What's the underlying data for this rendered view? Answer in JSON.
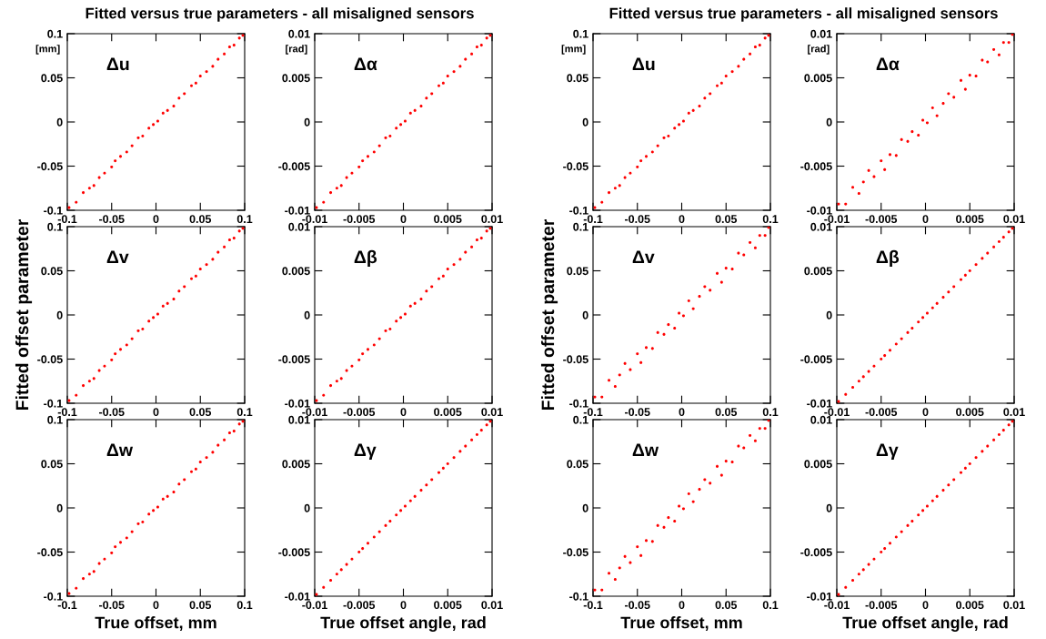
{
  "chart_data": [
    {
      "type": "scatter",
      "title": "Fitted versus true parameters - all misaligned sensors",
      "annotations": [
        "Δu",
        "[mm]"
      ],
      "color": "#ff0000",
      "marker": "circle",
      "xlim": [
        -0.1,
        0.1
      ],
      "ylim": [
        -0.1,
        0.1
      ],
      "xticks": [
        -0.1,
        -0.05,
        0,
        0.05,
        0.1
      ],
      "yticks": [
        -0.1,
        -0.05,
        0,
        0.05,
        0.1
      ],
      "x": [
        -0.098,
        -0.09,
        -0.082,
        -0.075,
        -0.07,
        -0.064,
        -0.058,
        -0.05,
        -0.046,
        -0.04,
        -0.033,
        -0.027,
        -0.02,
        -0.015,
        -0.008,
        -0.003,
        0.002,
        0.008,
        0.013,
        0.02,
        0.026,
        0.032,
        0.04,
        0.045,
        0.05,
        0.057,
        0.064,
        0.07,
        0.077,
        0.083,
        0.088,
        0.094,
        0.098
      ],
      "values": [
        -0.097,
        -0.091,
        -0.08,
        -0.075,
        -0.072,
        -0.063,
        -0.058,
        -0.051,
        -0.044,
        -0.039,
        -0.034,
        -0.027,
        -0.018,
        -0.016,
        -0.007,
        -0.003,
        0.001,
        0.01,
        0.013,
        0.018,
        0.027,
        0.032,
        0.041,
        0.044,
        0.052,
        0.057,
        0.063,
        0.071,
        0.077,
        0.085,
        0.087,
        0.095,
        0.098
      ]
    },
    {
      "type": "scatter",
      "annotations": [
        "Δα",
        "[rad]"
      ],
      "color": "#ff0000",
      "marker": "circle",
      "xlim": [
        -0.01,
        0.01
      ],
      "ylim": [
        -0.01,
        0.01
      ],
      "xticks": [
        -0.01,
        -0.005,
        0,
        0.005,
        0.01
      ],
      "yticks": [
        -0.01,
        -0.005,
        0,
        0.005,
        0.01
      ],
      "x": [
        -0.0098,
        -0.009,
        -0.0082,
        -0.0075,
        -0.007,
        -0.0064,
        -0.0058,
        -0.005,
        -0.0046,
        -0.004,
        -0.0033,
        -0.0027,
        -0.002,
        -0.0015,
        -0.0008,
        -0.0003,
        0.0002,
        0.0008,
        0.0013,
        0.002,
        0.0026,
        0.0032,
        0.004,
        0.0045,
        0.005,
        0.0057,
        0.0064,
        0.007,
        0.0077,
        0.0083,
        0.0088,
        0.0094,
        0.0098
      ],
      "values": [
        -0.0097,
        -0.0091,
        -0.008,
        -0.0075,
        -0.0072,
        -0.0063,
        -0.0058,
        -0.0051,
        -0.0044,
        -0.0039,
        -0.0034,
        -0.0027,
        -0.0018,
        -0.0016,
        -0.0007,
        -0.0003,
        0.0001,
        0.001,
        0.0013,
        0.0018,
        0.0027,
        0.0032,
        0.0041,
        0.0044,
        0.0052,
        0.0057,
        0.0063,
        0.0071,
        0.0077,
        0.0085,
        0.0087,
        0.0095,
        0.0098
      ]
    },
    {
      "type": "scatter",
      "title": "Fitted versus true parameters - all misaligned sensors",
      "annotations": [
        "Δu",
        "[mm]"
      ],
      "color": "#ff0000",
      "marker": "circle",
      "xlim": [
        -0.1,
        0.1
      ],
      "ylim": [
        -0.1,
        0.1
      ],
      "xticks": [
        -0.1,
        -0.05,
        0,
        0.05,
        0.1
      ],
      "yticks": [
        -0.1,
        -0.05,
        0,
        0.05,
        0.1
      ],
      "x": [
        -0.098,
        -0.09,
        -0.082,
        -0.075,
        -0.07,
        -0.064,
        -0.058,
        -0.05,
        -0.046,
        -0.04,
        -0.033,
        -0.027,
        -0.02,
        -0.015,
        -0.008,
        -0.003,
        0.002,
        0.008,
        0.013,
        0.02,
        0.026,
        0.032,
        0.04,
        0.045,
        0.05,
        0.057,
        0.064,
        0.07,
        0.077,
        0.083,
        0.088,
        0.094,
        0.098
      ],
      "values": [
        -0.097,
        -0.091,
        -0.08,
        -0.075,
        -0.072,
        -0.063,
        -0.058,
        -0.051,
        -0.044,
        -0.039,
        -0.034,
        -0.027,
        -0.018,
        -0.016,
        -0.007,
        -0.003,
        0.001,
        0.01,
        0.013,
        0.018,
        0.027,
        0.032,
        0.041,
        0.044,
        0.052,
        0.057,
        0.063,
        0.071,
        0.077,
        0.085,
        0.087,
        0.095,
        0.098
      ]
    },
    {
      "type": "scatter",
      "annotations": [
        "Δα",
        "[rad]"
      ],
      "color": "#ff0000",
      "marker": "circle",
      "xlim": [
        -0.01,
        0.01
      ],
      "ylim": [
        -0.01,
        0.01
      ],
      "xticks": [
        -0.01,
        -0.005,
        0,
        0.005,
        0.01
      ],
      "yticks": [
        -0.01,
        -0.005,
        0,
        0.005,
        0.01
      ],
      "x": [
        -0.0098,
        -0.009,
        -0.0082,
        -0.0075,
        -0.007,
        -0.0064,
        -0.0058,
        -0.005,
        -0.0046,
        -0.004,
        -0.0033,
        -0.0027,
        -0.002,
        -0.0015,
        -0.0008,
        -0.0003,
        0.0002,
        0.0008,
        0.0013,
        0.002,
        0.0026,
        0.0032,
        0.004,
        0.0045,
        0.005,
        0.0057,
        0.0064,
        0.007,
        0.0077,
        0.0083,
        0.0088,
        0.0094,
        0.0098
      ],
      "values": [
        -0.0093,
        -0.0093,
        -0.0074,
        -0.0081,
        -0.0068,
        -0.0055,
        -0.0062,
        -0.0044,
        -0.0054,
        -0.0037,
        -0.0038,
        -0.002,
        -0.0022,
        -0.0011,
        -0.0015,
        0.0002,
        -0.0001,
        0.0016,
        0.0007,
        0.0021,
        0.0032,
        0.0028,
        0.0047,
        0.0037,
        0.0053,
        0.0052,
        0.007,
        0.0068,
        0.0082,
        0.0076,
        0.009,
        0.009,
        0.0099
      ]
    },
    {
      "type": "scatter",
      "ylabel": "Fitted offset parameter",
      "annotations": [
        "Δv"
      ],
      "color": "#ff0000",
      "marker": "circle",
      "xlim": [
        -0.1,
        0.1
      ],
      "ylim": [
        -0.1,
        0.1
      ],
      "xticks": [
        -0.1,
        -0.05,
        0,
        0.05,
        0.1
      ],
      "yticks": [
        -0.1,
        -0.05,
        0,
        0.05,
        0.1
      ],
      "x": [
        -0.098,
        -0.09,
        -0.082,
        -0.075,
        -0.07,
        -0.064,
        -0.058,
        -0.05,
        -0.046,
        -0.04,
        -0.033,
        -0.027,
        -0.02,
        -0.015,
        -0.008,
        -0.003,
        0.002,
        0.008,
        0.013,
        0.02,
        0.026,
        0.032,
        0.04,
        0.045,
        0.05,
        0.057,
        0.064,
        0.07,
        0.077,
        0.083,
        0.088,
        0.094,
        0.098
      ],
      "values": [
        -0.097,
        -0.091,
        -0.08,
        -0.075,
        -0.072,
        -0.063,
        -0.058,
        -0.051,
        -0.044,
        -0.039,
        -0.034,
        -0.027,
        -0.018,
        -0.016,
        -0.007,
        -0.003,
        0.001,
        0.01,
        0.013,
        0.018,
        0.027,
        0.032,
        0.041,
        0.044,
        0.052,
        0.057,
        0.063,
        0.071,
        0.077,
        0.085,
        0.087,
        0.095,
        0.098
      ]
    },
    {
      "type": "scatter",
      "annotations": [
        "Δβ"
      ],
      "color": "#ff0000",
      "marker": "circle",
      "xlim": [
        -0.01,
        0.01
      ],
      "ylim": [
        -0.01,
        0.01
      ],
      "xticks": [
        -0.01,
        -0.005,
        0,
        0.005,
        0.01
      ],
      "yticks": [
        -0.01,
        -0.005,
        0,
        0.005,
        0.01
      ],
      "x": [
        -0.0098,
        -0.009,
        -0.0082,
        -0.0075,
        -0.007,
        -0.0064,
        -0.0058,
        -0.005,
        -0.0046,
        -0.004,
        -0.0033,
        -0.0027,
        -0.002,
        -0.0015,
        -0.0008,
        -0.0003,
        0.0002,
        0.0008,
        0.0013,
        0.002,
        0.0026,
        0.0032,
        0.004,
        0.0045,
        0.005,
        0.0057,
        0.0064,
        0.007,
        0.0077,
        0.0083,
        0.0088,
        0.0094,
        0.0098
      ],
      "values": [
        -0.0097,
        -0.0091,
        -0.008,
        -0.0075,
        -0.0072,
        -0.0063,
        -0.0058,
        -0.0051,
        -0.0044,
        -0.0039,
        -0.0034,
        -0.0027,
        -0.0018,
        -0.0016,
        -0.0007,
        -0.0003,
        0.0001,
        0.001,
        0.0013,
        0.0018,
        0.0027,
        0.0032,
        0.0041,
        0.0044,
        0.0052,
        0.0057,
        0.0063,
        0.0071,
        0.0077,
        0.0085,
        0.0087,
        0.0095,
        0.0098
      ]
    },
    {
      "type": "scatter",
      "ylabel": "Fitted offset parameter",
      "annotations": [
        "Δv"
      ],
      "color": "#ff0000",
      "marker": "circle",
      "xlim": [
        -0.1,
        0.1
      ],
      "ylim": [
        -0.1,
        0.1
      ],
      "xticks": [
        -0.1,
        -0.05,
        0,
        0.05,
        0.1
      ],
      "yticks": [
        -0.1,
        -0.05,
        0,
        0.05,
        0.1
      ],
      "x": [
        -0.098,
        -0.09,
        -0.082,
        -0.075,
        -0.07,
        -0.064,
        -0.058,
        -0.05,
        -0.046,
        -0.04,
        -0.033,
        -0.027,
        -0.02,
        -0.015,
        -0.008,
        -0.003,
        0.002,
        0.008,
        0.013,
        0.02,
        0.026,
        0.032,
        0.04,
        0.045,
        0.05,
        0.057,
        0.064,
        0.07,
        0.077,
        0.083,
        0.088,
        0.094,
        0.098
      ],
      "values": [
        -0.093,
        -0.093,
        -0.074,
        -0.081,
        -0.068,
        -0.055,
        -0.062,
        -0.044,
        -0.054,
        -0.037,
        -0.038,
        -0.02,
        -0.022,
        -0.011,
        -0.015,
        0.002,
        -0.001,
        0.016,
        0.007,
        0.021,
        0.032,
        0.028,
        0.047,
        0.037,
        0.053,
        0.052,
        0.07,
        0.068,
        0.082,
        0.076,
        0.09,
        0.09,
        0.099
      ]
    },
    {
      "type": "scatter",
      "annotations": [
        "Δβ"
      ],
      "color": "#ff0000",
      "marker": "circle",
      "xlim": [
        -0.01,
        0.01
      ],
      "ylim": [
        -0.01,
        0.01
      ],
      "xticks": [
        -0.01,
        -0.005,
        0,
        0.005,
        0.01
      ],
      "yticks": [
        -0.01,
        -0.005,
        0,
        0.005,
        0.01
      ],
      "x": [
        -0.0098,
        -0.009,
        -0.0082,
        -0.0075,
        -0.007,
        -0.0064,
        -0.0058,
        -0.005,
        -0.0046,
        -0.004,
        -0.0033,
        -0.0027,
        -0.002,
        -0.0015,
        -0.0008,
        -0.0003,
        0.0002,
        0.0008,
        0.0013,
        0.002,
        0.0026,
        0.0032,
        0.004,
        0.0045,
        0.005,
        0.0057,
        0.0064,
        0.007,
        0.0077,
        0.0083,
        0.0088,
        0.0094,
        0.0098
      ],
      "values": [
        -0.0098,
        -0.009,
        -0.0082,
        -0.0075,
        -0.007,
        -0.0064,
        -0.0058,
        -0.005,
        -0.0046,
        -0.004,
        -0.0033,
        -0.0027,
        -0.002,
        -0.0015,
        -0.0008,
        -0.0003,
        0.0002,
        0.0008,
        0.0013,
        0.002,
        0.0026,
        0.0032,
        0.004,
        0.0045,
        0.005,
        0.0057,
        0.0064,
        0.007,
        0.0077,
        0.0083,
        0.0088,
        0.0094,
        0.0098
      ]
    },
    {
      "type": "scatter",
      "xlabel": "True offset, mm",
      "annotations": [
        "Δw"
      ],
      "color": "#ff0000",
      "marker": "circle",
      "xlim": [
        -0.1,
        0.1
      ],
      "ylim": [
        -0.1,
        0.1
      ],
      "xticks": [
        -0.1,
        -0.05,
        0,
        0.05,
        0.1
      ],
      "yticks": [
        -0.1,
        -0.05,
        0,
        0.05,
        0.1
      ],
      "x": [
        -0.098,
        -0.09,
        -0.082,
        -0.075,
        -0.07,
        -0.064,
        -0.058,
        -0.05,
        -0.046,
        -0.04,
        -0.033,
        -0.027,
        -0.02,
        -0.015,
        -0.008,
        -0.003,
        0.002,
        0.008,
        0.013,
        0.02,
        0.026,
        0.032,
        0.04,
        0.045,
        0.05,
        0.057,
        0.064,
        0.07,
        0.077,
        0.083,
        0.088,
        0.094,
        0.098
      ],
      "values": [
        -0.097,
        -0.091,
        -0.08,
        -0.075,
        -0.072,
        -0.063,
        -0.058,
        -0.051,
        -0.044,
        -0.039,
        -0.034,
        -0.027,
        -0.018,
        -0.016,
        -0.007,
        -0.003,
        0.001,
        0.01,
        0.013,
        0.018,
        0.027,
        0.032,
        0.041,
        0.044,
        0.052,
        0.057,
        0.063,
        0.071,
        0.077,
        0.085,
        0.087,
        0.095,
        0.098
      ]
    },
    {
      "type": "scatter",
      "xlabel": "True offset angle, rad",
      "annotations": [
        "Δγ"
      ],
      "color": "#ff0000",
      "marker": "circle",
      "xlim": [
        -0.01,
        0.01
      ],
      "ylim": [
        -0.01,
        0.01
      ],
      "xticks": [
        -0.01,
        -0.005,
        0,
        0.005,
        0.01
      ],
      "yticks": [
        -0.01,
        -0.005,
        0,
        0.005,
        0.01
      ],
      "x": [
        -0.0098,
        -0.009,
        -0.0082,
        -0.0075,
        -0.007,
        -0.0064,
        -0.0058,
        -0.005,
        -0.0046,
        -0.004,
        -0.0033,
        -0.0027,
        -0.002,
        -0.0015,
        -0.0008,
        -0.0003,
        0.0002,
        0.0008,
        0.0013,
        0.002,
        0.0026,
        0.0032,
        0.004,
        0.0045,
        0.005,
        0.0057,
        0.0064,
        0.007,
        0.0077,
        0.0083,
        0.0088,
        0.0094,
        0.0098
      ],
      "values": [
        -0.0098,
        -0.009,
        -0.0082,
        -0.0075,
        -0.007,
        -0.0064,
        -0.0058,
        -0.005,
        -0.0046,
        -0.004,
        -0.0033,
        -0.0027,
        -0.002,
        -0.0015,
        -0.0008,
        -0.0003,
        0.0002,
        0.0008,
        0.0013,
        0.002,
        0.0026,
        0.0032,
        0.004,
        0.0045,
        0.005,
        0.0057,
        0.0064,
        0.007,
        0.0077,
        0.0083,
        0.0088,
        0.0094,
        0.0098
      ]
    },
    {
      "type": "scatter",
      "xlabel": "True offset, mm",
      "annotations": [
        "Δw"
      ],
      "color": "#ff0000",
      "marker": "circle",
      "xlim": [
        -0.1,
        0.1
      ],
      "ylim": [
        -0.1,
        0.1
      ],
      "xticks": [
        -0.1,
        -0.05,
        0,
        0.05,
        0.1
      ],
      "yticks": [
        -0.1,
        -0.05,
        0,
        0.05,
        0.1
      ],
      "x": [
        -0.098,
        -0.09,
        -0.082,
        -0.075,
        -0.07,
        -0.064,
        -0.058,
        -0.05,
        -0.046,
        -0.04,
        -0.033,
        -0.027,
        -0.02,
        -0.015,
        -0.008,
        -0.003,
        0.002,
        0.008,
        0.013,
        0.02,
        0.026,
        0.032,
        0.04,
        0.045,
        0.05,
        0.057,
        0.064,
        0.07,
        0.077,
        0.083,
        0.088,
        0.094,
        0.098
      ],
      "values": [
        -0.093,
        -0.093,
        -0.074,
        -0.081,
        -0.068,
        -0.055,
        -0.062,
        -0.044,
        -0.054,
        -0.037,
        -0.038,
        -0.02,
        -0.022,
        -0.011,
        -0.015,
        0.002,
        -0.001,
        0.016,
        0.007,
        0.021,
        0.032,
        0.028,
        0.047,
        0.037,
        0.053,
        0.052,
        0.07,
        0.068,
        0.082,
        0.076,
        0.09,
        0.09,
        0.099
      ]
    },
    {
      "type": "scatter",
      "xlabel": "True offset angle, rad",
      "annotations": [
        "Δγ"
      ],
      "color": "#ff0000",
      "marker": "circle",
      "xlim": [
        -0.01,
        0.01
      ],
      "ylim": [
        -0.01,
        0.01
      ],
      "xticks": [
        -0.01,
        -0.005,
        0,
        0.005,
        0.01
      ],
      "yticks": [
        -0.01,
        -0.005,
        0,
        0.005,
        0.01
      ],
      "x": [
        -0.0098,
        -0.009,
        -0.0082,
        -0.0075,
        -0.007,
        -0.0064,
        -0.0058,
        -0.005,
        -0.0046,
        -0.004,
        -0.0033,
        -0.0027,
        -0.002,
        -0.0015,
        -0.0008,
        -0.0003,
        0.0002,
        0.0008,
        0.0013,
        0.002,
        0.0026,
        0.0032,
        0.004,
        0.0045,
        0.005,
        0.0057,
        0.0064,
        0.007,
        0.0077,
        0.0083,
        0.0088,
        0.0094,
        0.0098
      ],
      "values": [
        -0.0098,
        -0.009,
        -0.0082,
        -0.0075,
        -0.007,
        -0.0064,
        -0.0058,
        -0.005,
        -0.0046,
        -0.004,
        -0.0033,
        -0.0027,
        -0.002,
        -0.0015,
        -0.0008,
        -0.0003,
        0.0002,
        0.0008,
        0.0013,
        0.002,
        0.0026,
        0.0032,
        0.004,
        0.0045,
        0.005,
        0.0057,
        0.0064,
        0.007,
        0.0077,
        0.0083,
        0.0088,
        0.0094,
        0.0098
      ]
    }
  ]
}
